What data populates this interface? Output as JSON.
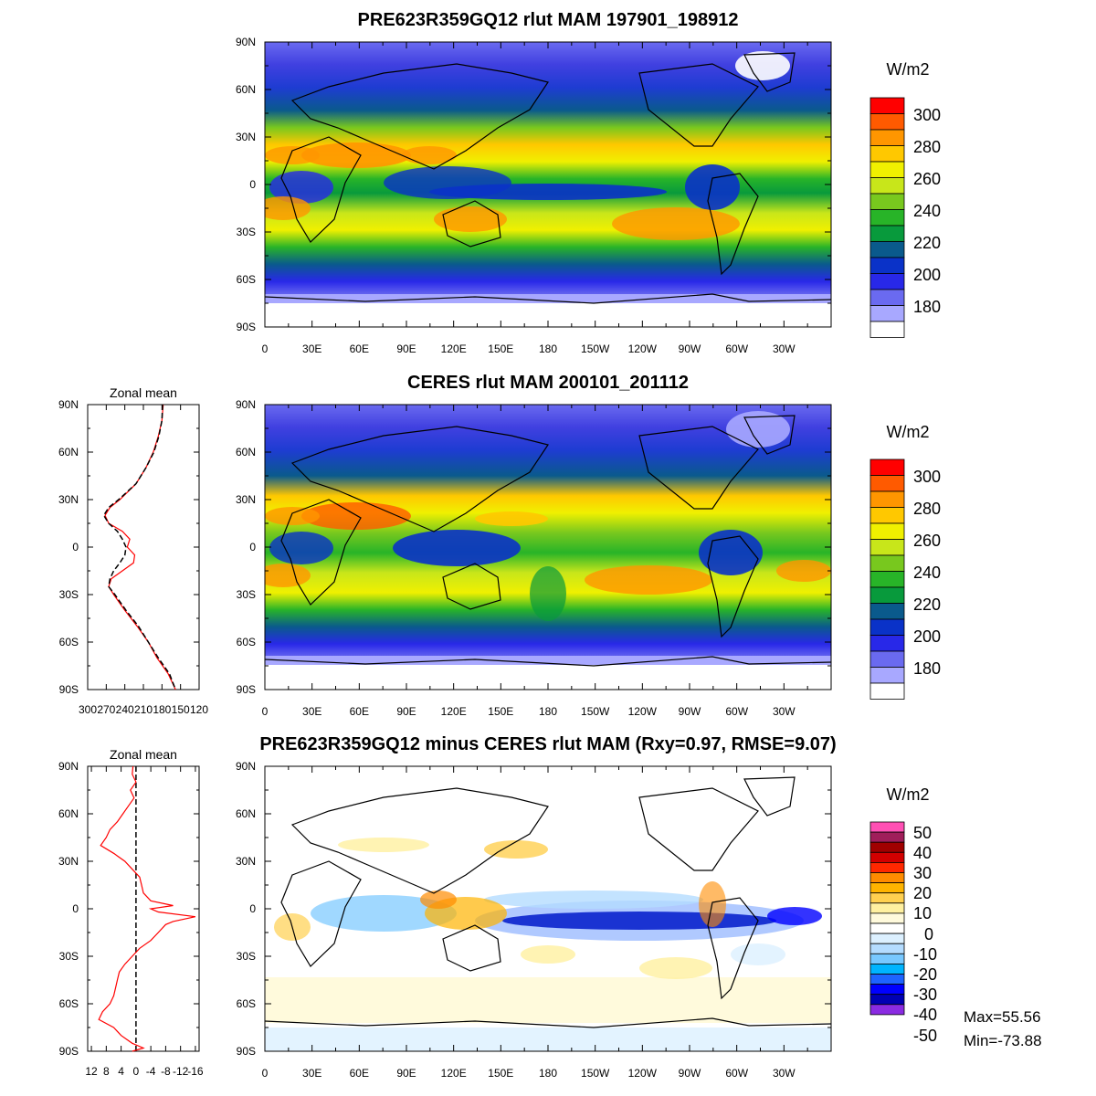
{
  "colors": {
    "rlut_levels": [
      "#ffffff",
      "#a8a8ff",
      "#6a6af0",
      "#2828e8",
      "#0a32c8",
      "#0a5a8c",
      "#089a3c",
      "#28b428",
      "#78c81e",
      "#c8e61a",
      "#f0f000",
      "#ffc800",
      "#ff9600",
      "#ff5a00",
      "#ff0000"
    ],
    "diff_levels": [
      "#8a2be2",
      "#0000b4",
      "#0000ff",
      "#1e64ff",
      "#00b4ff",
      "#78c8ff",
      "#b4dcff",
      "#dcf0ff",
      "#ffffff",
      "#fffadc",
      "#fff0a0",
      "#ffd050",
      "#ffb400",
      "#ff8c00",
      "#ff2800",
      "#d20000",
      "#a00000",
      "#a01e5a",
      "#ff50b4"
    ],
    "zonal_model_line": "#ff0000",
    "zonal_obs_line": "#000000"
  },
  "chart_data": [
    {
      "type": "heatmap",
      "panel": "model",
      "title": "PRE623R359GQ12 rlut MAM 197901_198912",
      "units": "W/m2",
      "x_ticks": [
        "0",
        "30E",
        "60E",
        "90E",
        "120E",
        "150E",
        "180",
        "150W",
        "120W",
        "90W",
        "60W",
        "30W"
      ],
      "y_ticks": [
        "90N",
        "60N",
        "30N",
        "0",
        "30S",
        "60S",
        "90S"
      ],
      "colorbar_ticks": [
        "300",
        "280",
        "260",
        "240",
        "220",
        "200",
        "180"
      ],
      "colorbar_range": [
        170,
        310
      ]
    },
    {
      "type": "heatmap",
      "panel": "observation",
      "title": "CERES rlut MAM 200101_201112",
      "units": "W/m2",
      "x_ticks": [
        "0",
        "30E",
        "60E",
        "90E",
        "120E",
        "150E",
        "180",
        "150W",
        "120W",
        "90W",
        "60W",
        "30W"
      ],
      "y_ticks": [
        "90N",
        "60N",
        "30N",
        "0",
        "30S",
        "60S",
        "90S"
      ],
      "colorbar_ticks": [
        "300",
        "280",
        "260",
        "240",
        "220",
        "200",
        "180"
      ],
      "colorbar_range": [
        170,
        310
      ]
    },
    {
      "type": "heatmap",
      "panel": "difference",
      "title": "PRE623R359GQ12 minus CERES rlut MAM (Rxy=0.97, RMSE=9.07)",
      "units": "W/m2",
      "x_ticks": [
        "0",
        "30E",
        "60E",
        "90E",
        "120E",
        "150E",
        "180",
        "150W",
        "120W",
        "90W",
        "60W",
        "30W"
      ],
      "y_ticks": [
        "90N",
        "60N",
        "30N",
        "0",
        "30S",
        "60S",
        "90S"
      ],
      "colorbar_ticks": [
        "50",
        "40",
        "30",
        "20",
        "10",
        "0",
        "-10",
        "-20",
        "-30",
        "-40",
        "-50"
      ],
      "colorbar_range": [
        -55,
        55
      ],
      "stats": {
        "max": "Max=55.56",
        "min": "Min=-73.88"
      }
    },
    {
      "type": "line",
      "panel": "zonal_mean_full",
      "title": "Zonal mean",
      "x_ticks": [
        "300",
        "270",
        "240",
        "210",
        "180",
        "150",
        "120"
      ],
      "x_tick_values": [
        300,
        270,
        240,
        210,
        180,
        150,
        120
      ],
      "xlim": [
        300,
        120
      ],
      "y_ticks": [
        "90N",
        "60N",
        "30N",
        "0",
        "30S",
        "60S",
        "90S"
      ],
      "ylim": [
        -90,
        90
      ],
      "lat": [
        90,
        80,
        70,
        60,
        50,
        40,
        30,
        25,
        20,
        15,
        10,
        5,
        0,
        -5,
        -10,
        -15,
        -20,
        -25,
        -30,
        -40,
        -50,
        -60,
        -70,
        -80,
        -90
      ],
      "series": [
        {
          "values": [
            178,
            180,
            186,
            194,
            206,
            222,
            248,
            264,
            272,
            266,
            244,
            232,
            236,
            224,
            226,
            244,
            262,
            266,
            258,
            240,
            220,
            202,
            188,
            170,
            158
          ]
        },
        {
          "values": [
            179,
            180,
            185,
            193,
            206,
            222,
            250,
            266,
            274,
            266,
            252,
            244,
            238,
            240,
            248,
            258,
            264,
            266,
            256,
            238,
            218,
            202,
            186,
            168,
            158
          ]
        }
      ]
    },
    {
      "type": "line",
      "panel": "zonal_mean_diff",
      "title": "Zonal mean",
      "x_ticks": [
        "12",
        "8",
        "4",
        "0",
        "-4",
        "-8",
        "-12",
        "-16"
      ],
      "x_tick_values": [
        12,
        8,
        4,
        0,
        -4,
        -8,
        -12,
        -16
      ],
      "xlim": [
        13,
        -17
      ],
      "y_ticks": [
        "90N",
        "60N",
        "30N",
        "0",
        "30S",
        "60S",
        "90S"
      ],
      "ylim": [
        -90,
        90
      ],
      "lat": [
        90,
        85,
        80,
        75,
        70,
        65,
        60,
        55,
        50,
        45,
        40,
        35,
        30,
        25,
        20,
        15,
        10,
        5,
        2,
        0,
        -2,
        -5,
        -8,
        -10,
        -15,
        -20,
        -25,
        -30,
        -35,
        -40,
        -45,
        -50,
        -55,
        -60,
        -65,
        -70,
        -75,
        -80,
        -85,
        -88,
        -90
      ],
      "series": [
        {
          "values": [
            0.8,
            1,
            0,
            1.5,
            0.5,
            2,
            3.5,
            5,
            7,
            8,
            9.5,
            6,
            3,
            1,
            -1,
            -1.5,
            -2,
            -4,
            -10,
            -4,
            -6,
            -16,
            -10,
            -8,
            -6,
            -4,
            -1,
            1,
            3,
            4.5,
            5,
            5.5,
            6,
            7,
            9,
            10,
            6,
            4,
            1,
            -2,
            1
          ]
        },
        {
          "values": [
            0,
            0,
            0,
            0,
            0,
            0,
            0,
            0,
            0,
            0,
            0,
            0,
            0,
            0,
            0,
            0,
            0,
            0,
            0,
            0,
            0,
            0,
            0,
            0,
            0,
            0,
            0,
            0,
            0,
            0,
            0,
            0,
            0,
            0,
            0,
            0,
            0,
            0,
            0,
            0,
            0
          ]
        }
      ]
    }
  ]
}
